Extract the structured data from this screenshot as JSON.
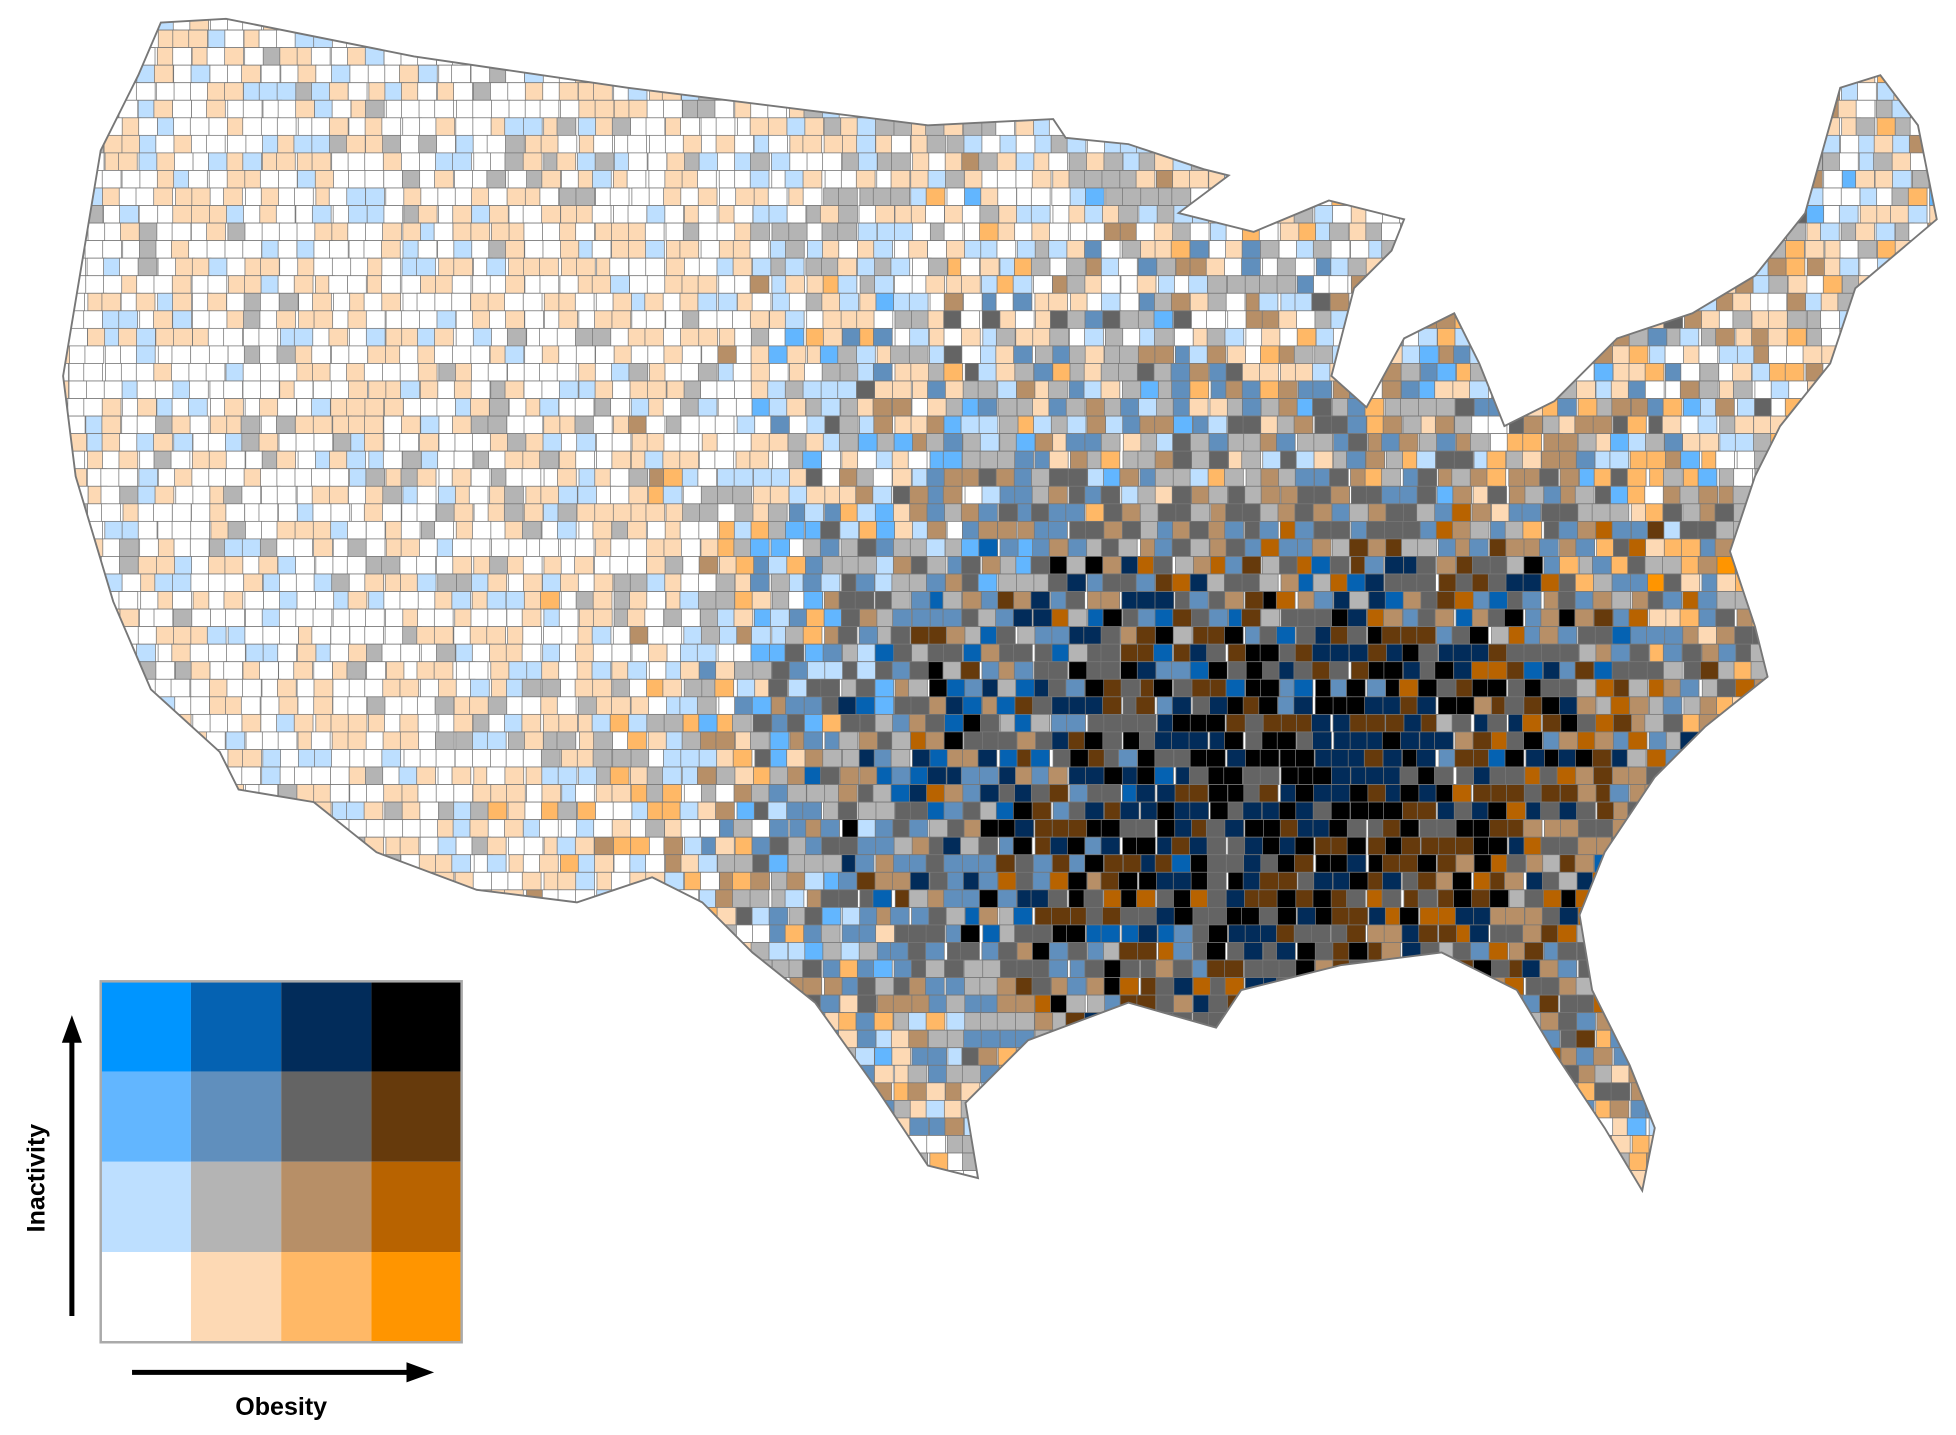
{
  "legend": {
    "y_label": "Inactivity",
    "x_label": "Obesity",
    "colors": [
      [
        "#0095ff",
        "#0562b2",
        "#022c5a",
        "#000000"
      ],
      [
        "#62b6ff",
        "#608fbd",
        "#646464",
        "#663a0c"
      ],
      [
        "#bddfff",
        "#b4b4b4",
        "#b78f67",
        "#b86300"
      ],
      [
        "#ffffff",
        "#fdd9b4",
        "#ffb866",
        "#ff9500"
      ]
    ]
  }
}
